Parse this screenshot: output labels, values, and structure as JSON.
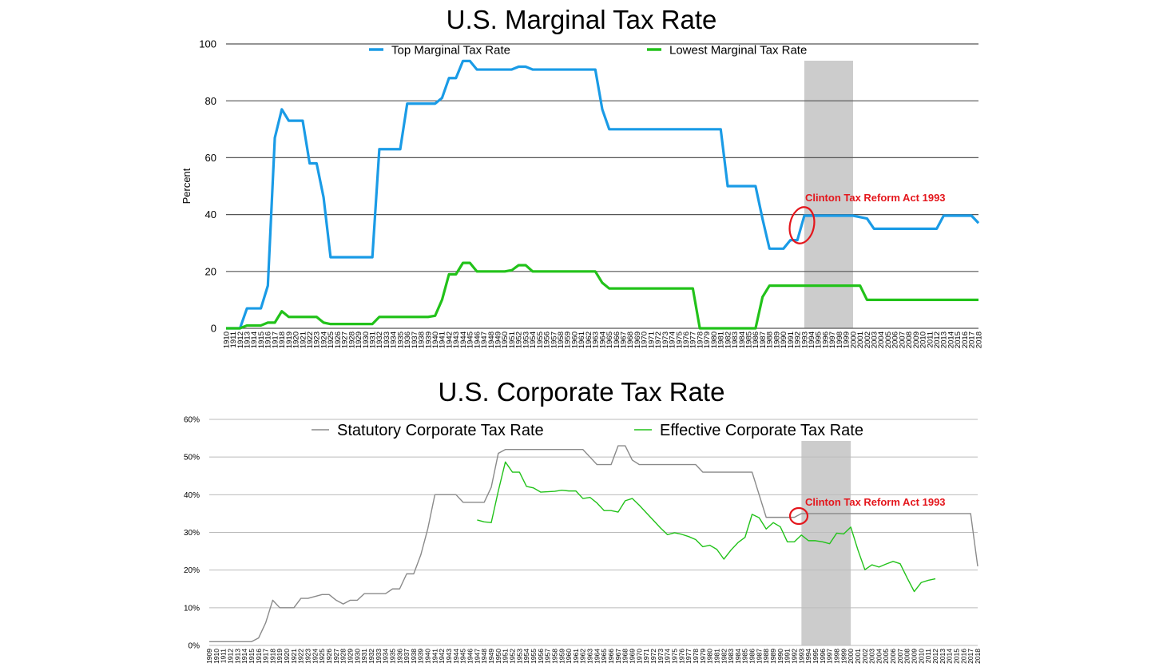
{
  "chart_data": [
    {
      "type": "line",
      "title": "U.S. Marginal Tax Rate",
      "ylabel": "Percent",
      "xlabel": "",
      "ylim": [
        0,
        100
      ],
      "yticks": [
        0,
        20,
        40,
        60,
        80,
        100
      ],
      "x_range": [
        1910,
        2018
      ],
      "grid": true,
      "legend_position": "top",
      "highlight_range": [
        1993,
        2000
      ],
      "annotation": {
        "text": "Clinton Tax Reform Act 1993",
        "year": 1993
      },
      "series": [
        {
          "name": "Top Marginal Tax Rate",
          "color": "#1a9be6",
          "x": [
            1910,
            1911,
            1912,
            1913,
            1914,
            1915,
            1916,
            1917,
            1918,
            1919,
            1920,
            1921,
            1922,
            1923,
            1924,
            1925,
            1926,
            1927,
            1928,
            1929,
            1930,
            1931,
            1932,
            1933,
            1934,
            1935,
            1936,
            1937,
            1938,
            1939,
            1940,
            1941,
            1942,
            1943,
            1944,
            1945,
            1946,
            1947,
            1948,
            1949,
            1950,
            1951,
            1952,
            1953,
            1954,
            1955,
            1956,
            1957,
            1958,
            1959,
            1960,
            1961,
            1962,
            1963,
            1964,
            1965,
            1966,
            1967,
            1968,
            1969,
            1970,
            1971,
            1972,
            1973,
            1974,
            1975,
            1976,
            1977,
            1978,
            1979,
            1980,
            1981,
            1982,
            1983,
            1984,
            1985,
            1986,
            1987,
            1988,
            1989,
            1990,
            1991,
            1992,
            1993,
            1994,
            1995,
            1996,
            1997,
            1998,
            1999,
            2000,
            2001,
            2002,
            2003,
            2004,
            2005,
            2006,
            2007,
            2008,
            2009,
            2010,
            2011,
            2012,
            2013,
            2014,
            2015,
            2016,
            2017,
            2018
          ],
          "values": [
            0,
            0,
            0,
            7,
            7,
            7,
            15,
            67,
            77,
            73,
            73,
            73,
            58,
            58,
            46,
            25,
            25,
            25,
            25,
            25,
            25,
            25,
            63,
            63,
            63,
            63,
            79,
            79,
            79,
            79,
            79,
            81,
            88,
            88,
            94,
            94,
            91,
            91,
            91,
            91,
            91,
            91,
            92,
            92,
            91,
            91,
            91,
            91,
            91,
            91,
            91,
            91,
            91,
            91,
            77,
            70,
            70,
            70,
            70,
            70,
            70,
            70,
            70,
            70,
            70,
            70,
            70,
            70,
            70,
            70,
            70,
            70,
            50,
            50,
            50,
            50,
            50,
            38.5,
            28,
            28,
            28,
            31,
            31,
            39.6,
            39.6,
            39.6,
            39.6,
            39.6,
            39.6,
            39.6,
            39.6,
            39.1,
            38.6,
            35,
            35,
            35,
            35,
            35,
            35,
            35,
            35,
            35,
            35,
            39.6,
            39.6,
            39.6,
            39.6,
            39.6,
            37
          ]
        },
        {
          "name": "Lowest Marginal Tax Rate",
          "color": "#22c21a",
          "x": [
            1910,
            1911,
            1912,
            1913,
            1914,
            1915,
            1916,
            1917,
            1918,
            1919,
            1920,
            1921,
            1922,
            1923,
            1924,
            1925,
            1926,
            1927,
            1928,
            1929,
            1930,
            1931,
            1932,
            1933,
            1934,
            1935,
            1936,
            1937,
            1938,
            1939,
            1940,
            1941,
            1942,
            1943,
            1944,
            1945,
            1946,
            1947,
            1948,
            1949,
            1950,
            1951,
            1952,
            1953,
            1954,
            1955,
            1956,
            1957,
            1958,
            1959,
            1960,
            1961,
            1962,
            1963,
            1964,
            1965,
            1966,
            1967,
            1968,
            1969,
            1970,
            1971,
            1972,
            1973,
            1974,
            1975,
            1976,
            1977,
            1978,
            1979,
            1980,
            1981,
            1982,
            1983,
            1984,
            1985,
            1986,
            1987,
            1988,
            1989,
            1990,
            1991,
            1992,
            1993,
            1994,
            1995,
            1996,
            1997,
            1998,
            1999,
            2000,
            2001,
            2002,
            2003,
            2004,
            2005,
            2006,
            2007,
            2008,
            2009,
            2010,
            2011,
            2012,
            2013,
            2014,
            2015,
            2016,
            2017,
            2018
          ],
          "values": [
            0,
            0,
            0,
            1,
            1,
            1,
            2,
            2,
            6,
            4,
            4,
            4,
            4,
            4,
            2,
            1.5,
            1.5,
            1.5,
            1.5,
            1.5,
            1.5,
            1.5,
            4,
            4,
            4,
            4,
            4,
            4,
            4,
            4,
            4.4,
            10,
            19,
            19,
            23,
            23,
            20,
            20,
            20,
            20,
            20,
            20.4,
            22.2,
            22.2,
            20,
            20,
            20,
            20,
            20,
            20,
            20,
            20,
            20,
            20,
            16,
            14,
            14,
            14,
            14,
            14,
            14,
            14,
            14,
            14,
            14,
            14,
            14,
            14,
            0,
            0,
            0,
            0,
            0,
            0,
            0,
            0,
            0,
            11,
            15,
            15,
            15,
            15,
            15,
            15,
            15,
            15,
            15,
            15,
            15,
            15,
            15,
            15,
            10,
            10,
            10,
            10,
            10,
            10,
            10,
            10,
            10,
            10,
            10,
            10,
            10,
            10,
            10,
            10,
            10
          ]
        }
      ]
    },
    {
      "type": "line",
      "title": "U.S. Corporate Tax Rate",
      "xlabel": "",
      "ylabel": "",
      "ylim": [
        0,
        60
      ],
      "yticks": [
        "0%",
        "10%",
        "20%",
        "30%",
        "40%",
        "50%",
        "60%"
      ],
      "x_range": [
        1909,
        2018
      ],
      "grid": true,
      "legend_position": "top",
      "highlight_range": [
        1993,
        2000
      ],
      "annotation": {
        "text": "Clinton Tax Reform Act 1993",
        "year": 1993
      },
      "series": [
        {
          "name": "Statutory Corporate Tax Rate",
          "color": "#8a8a8a",
          "x": [
            1909,
            1910,
            1911,
            1912,
            1913,
            1914,
            1915,
            1916,
            1917,
            1918,
            1919,
            1920,
            1921,
            1922,
            1923,
            1924,
            1925,
            1926,
            1927,
            1928,
            1929,
            1930,
            1931,
            1932,
            1933,
            1934,
            1935,
            1936,
            1937,
            1938,
            1939,
            1940,
            1941,
            1942,
            1943,
            1944,
            1945,
            1946,
            1947,
            1948,
            1949,
            1950,
            1951,
            1952,
            1953,
            1954,
            1955,
            1956,
            1957,
            1958,
            1959,
            1960,
            1961,
            1962,
            1963,
            1964,
            1965,
            1966,
            1967,
            1968,
            1969,
            1970,
            1971,
            1972,
            1973,
            1974,
            1975,
            1976,
            1977,
            1978,
            1979,
            1980,
            1981,
            1982,
            1983,
            1984,
            1985,
            1986,
            1987,
            1988,
            1989,
            1990,
            1991,
            1992,
            1993,
            1994,
            1995,
            1996,
            1997,
            1998,
            1999,
            2000,
            2001,
            2002,
            2003,
            2004,
            2005,
            2006,
            2007,
            2008,
            2009,
            2010,
            2011,
            2012,
            2013,
            2014,
            2015,
            2016,
            2017,
            2018
          ],
          "values": [
            1,
            1,
            1,
            1,
            1,
            1,
            1,
            2,
            6,
            12,
            10,
            10,
            10,
            12.5,
            12.5,
            13,
            13.5,
            13.5,
            12,
            11,
            12,
            12,
            13.75,
            13.75,
            13.75,
            13.75,
            15,
            15,
            19,
            19,
            24,
            31,
            40,
            40,
            40,
            40,
            38,
            38,
            38,
            38,
            42,
            51,
            52,
            52,
            52,
            52,
            52,
            52,
            52,
            52,
            52,
            52,
            52,
            52,
            50,
            48,
            48,
            48,
            53,
            53,
            49.2,
            48,
            48,
            48,
            48,
            48,
            48,
            48,
            48,
            48,
            46,
            46,
            46,
            46,
            46,
            46,
            46,
            46,
            40,
            34,
            34,
            34,
            34,
            34,
            35,
            35,
            35,
            35,
            35,
            35,
            35,
            35,
            35,
            35,
            35,
            35,
            35,
            35,
            35,
            35,
            35,
            35,
            35,
            35,
            35,
            35,
            35,
            35,
            35,
            21
          ]
        },
        {
          "name": "Effective Corporate Tax Rate",
          "color": "#22c21a",
          "x": [
            1947,
            1948,
            1949,
            1950,
            1951,
            1952,
            1953,
            1954,
            1955,
            1956,
            1957,
            1958,
            1959,
            1960,
            1961,
            1962,
            1963,
            1964,
            1965,
            1966,
            1967,
            1968,
            1969,
            1970,
            1971,
            1972,
            1973,
            1974,
            1975,
            1976,
            1977,
            1978,
            1979,
            1980,
            1981,
            1982,
            1983,
            1984,
            1985,
            1986,
            1987,
            1988,
            1989,
            1990,
            1991,
            1992,
            1993,
            1994,
            1995,
            1996,
            1997,
            1998,
            1999,
            2000,
            2001,
            2002,
            2003,
            2004,
            2005,
            2006,
            2007,
            2008,
            2009,
            2010,
            2011,
            2012
          ],
          "values": [
            33.3,
            32.8,
            32.6,
            41,
            48.7,
            46,
            46,
            42.2,
            41.8,
            40.7,
            40.8,
            40.9,
            41.2,
            41,
            41,
            39,
            39.3,
            37.8,
            35.8,
            35.8,
            35.4,
            38.4,
            39,
            37.2,
            35.2,
            33.2,
            31.2,
            29.4,
            29.9,
            29.5,
            28.9,
            28.1,
            26.2,
            26.6,
            25.5,
            22.9,
            25.3,
            27.3,
            28.7,
            34.8,
            33.9,
            30.9,
            32.6,
            31.5,
            27.5,
            27.5,
            29.3,
            27.8,
            27.8,
            27.5,
            27,
            29.8,
            29.6,
            31.4,
            25.4,
            20.1,
            21.4,
            20.8,
            21.6,
            22.3,
            21.7,
            17.9,
            14.3,
            16.7,
            17.3,
            17.7
          ]
        }
      ]
    }
  ]
}
